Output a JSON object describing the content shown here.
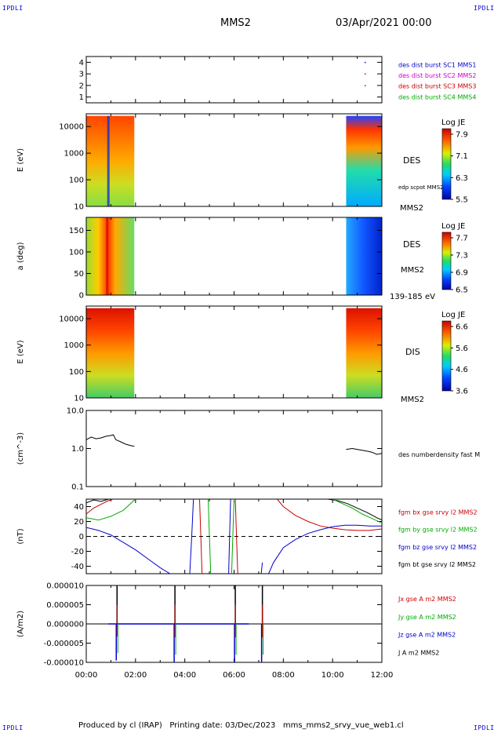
{
  "header": {
    "corner_label": "IPDLI",
    "spacecraft": "MMS2",
    "date": "03/Apr/2021 00:00"
  },
  "footer": {
    "text": "Produced by cl (IRAP)   Printing date: 03/Dec/2023   mms_mms2_srvy_vue_web1.cl"
  },
  "chart_data": [
    {
      "type": "scatter",
      "name": "burst-flags",
      "ylim": [
        0.5,
        4.5
      ],
      "ticks": [
        "1",
        "2",
        "3",
        "4"
      ],
      "tick_values": [
        1,
        2,
        3,
        4
      ],
      "x": "hours 00:00-12:00",
      "points": [
        {
          "x": 11.3,
          "y": 4,
          "color": "#0000cc"
        },
        {
          "x": 11.3,
          "y": 3,
          "color": "#cc0000"
        },
        {
          "x": 11.3,
          "y": 2,
          "color": "#cc0000"
        }
      ],
      "legend": [
        {
          "label": "des dist burst SC1 MMS1",
          "color": "#0000cc"
        },
        {
          "label": "des dist burst SC2 MMS2",
          "color": "#cc00cc"
        },
        {
          "label": "des dist burst SC3 MMS3",
          "color": "#cc0000"
        },
        {
          "label": "des dist burst SC4 MMS4",
          "color": "#00aa00"
        }
      ]
    },
    {
      "type": "heatmap",
      "name": "des-energy-spectrogram",
      "ylabel": "E (eV)",
      "yscale": "log",
      "ylim": [
        10,
        30000
      ],
      "ticks": [
        "10",
        "100",
        "1000",
        "10000"
      ],
      "tick_values": [
        10,
        100,
        1000,
        10000
      ],
      "data_intervals": [
        [
          0,
          1.95
        ],
        [
          10.55,
          12
        ]
      ],
      "labels": [
        "DES",
        "edp scpot MMS2",
        "MMS2"
      ],
      "colorbar": {
        "title": "Log JE",
        "ticks": [
          "7.9",
          "7.1",
          "6.3",
          "5.5"
        ]
      }
    },
    {
      "type": "heatmap",
      "name": "des-pitch-angle",
      "ylabel": "a (deg)",
      "ylim": [
        0,
        180
      ],
      "ticks": [
        "0",
        "50",
        "100",
        "150"
      ],
      "tick_values": [
        0,
        50,
        100,
        150
      ],
      "data_intervals": [
        [
          0,
          1.95
        ],
        [
          10.55,
          12
        ]
      ],
      "labels": [
        "DES",
        "MMS2",
        "139-185 eV"
      ],
      "colorbar": {
        "title": "Log JE",
        "ticks": [
          "7.7",
          "7.3",
          "6.9",
          "6.5"
        ]
      }
    },
    {
      "type": "heatmap",
      "name": "dis-energy-spectrogram",
      "ylabel": "E (eV)",
      "yscale": "log",
      "ylim": [
        10,
        30000
      ],
      "ticks": [
        "10",
        "100",
        "1000",
        "10000"
      ],
      "tick_values": [
        10,
        100,
        1000,
        10000
      ],
      "data_intervals": [
        [
          0,
          1.95
        ],
        [
          10.55,
          12
        ]
      ],
      "labels": [
        "DIS",
        "MMS2"
      ],
      "colorbar": {
        "title": "Log JE",
        "ticks": [
          "6.6",
          "5.6",
          "4.6",
          "3.6"
        ]
      }
    },
    {
      "type": "line",
      "name": "density",
      "ylabel": "(cm^-3)",
      "yscale": "log",
      "ylim": [
        0.1,
        10
      ],
      "ticks": [
        "0.1",
        "1.0",
        "10.0"
      ],
      "tick_values": [
        0.1,
        1,
        10
      ],
      "legend": [
        {
          "label": "des numberdensity fast M",
          "color": "#000000"
        }
      ],
      "series": [
        {
          "name": "des numberdensity fast M",
          "color": "#000000",
          "x": [
            0.0,
            0.2,
            0.4,
            0.6,
            0.8,
            1.0,
            1.1,
            1.2,
            1.4,
            1.6,
            1.8,
            1.95
          ],
          "y": [
            1.7,
            2.0,
            1.8,
            1.9,
            2.1,
            2.2,
            2.3,
            1.7,
            1.5,
            1.3,
            1.2,
            1.15
          ]
        },
        {
          "name": "des numberdensity fast M",
          "color": "#000000",
          "x": [
            10.55,
            10.8,
            11.0,
            11.2,
            11.4,
            11.6,
            11.8,
            12.0
          ],
          "y": [
            0.95,
            1.0,
            0.95,
            0.9,
            0.85,
            0.8,
            0.7,
            0.75
          ]
        }
      ]
    },
    {
      "type": "line",
      "name": "magnetic-field",
      "ylabel": "(nT)",
      "ylim": [
        -50,
        50
      ],
      "ticks": [
        "-40",
        "-20",
        "0",
        "20",
        "40"
      ],
      "tick_values": [
        -40,
        -20,
        0,
        20,
        40
      ],
      "zero_line": true,
      "legend": [
        {
          "label": "fgm bx gse srvy l2 MMS2",
          "color": "#cc0000"
        },
        {
          "label": "fgm by gse srvy l2 MMS2",
          "color": "#00aa00"
        },
        {
          "label": "fgm bz gse srvy l2 MMS2",
          "color": "#0000cc"
        },
        {
          "label": "fgm bt gse srvy l2 MMS2",
          "color": "#000000"
        }
      ],
      "series": [
        {
          "name": "fgm bt gse srvy l2 MMS2",
          "color": "#000000",
          "x": [
            0,
            0.3,
            0.6,
            0.9,
            1.0
          ],
          "y": [
            45,
            49,
            47,
            50,
            50
          ]
        },
        {
          "name": "fgm bx gse srvy l2 MMS2",
          "color": "#cc0000",
          "x": [
            0,
            0.3,
            0.6,
            0.9,
            1.1
          ],
          "y": [
            30,
            38,
            43,
            48,
            50
          ]
        },
        {
          "name": "fgm by gse srvy l2 MMS2",
          "color": "#00aa00",
          "x": [
            0,
            0.5,
            1.0,
            1.5,
            2.0
          ],
          "y": [
            25,
            22,
            27,
            35,
            50
          ]
        },
        {
          "name": "fgm bz gse srvy l2 MMS2",
          "color": "#0000cc",
          "x": [
            0,
            0.5,
            1.0,
            1.5,
            2.0,
            2.5,
            3.0,
            3.4
          ],
          "y": [
            12,
            8,
            2,
            -8,
            -18,
            -30,
            -42,
            -50
          ]
        },
        {
          "name": "fgm bz gse srvy l2 MMS2",
          "color": "#0000cc",
          "x": [
            4.2,
            4.28,
            4.35
          ],
          "y": [
            -50,
            0,
            50
          ]
        },
        {
          "name": "fgm bx gse srvy l2 MMS2",
          "color": "#cc0000",
          "x": [
            4.6,
            4.65,
            4.7
          ],
          "y": [
            50,
            0,
            -50
          ]
        },
        {
          "name": "fgm by gse srvy l2 MMS2",
          "color": "#00aa00",
          "x": [
            4.95,
            5.0,
            5.05
          ],
          "y": [
            50,
            0,
            -50
          ]
        },
        {
          "name": "fgm by gse srvy l2 MMS2",
          "color": "#00aa00",
          "x": [
            5.9,
            5.95,
            6.0
          ],
          "y": [
            -50,
            0,
            50
          ]
        },
        {
          "name": "fgm bz gse srvy l2 MMS2",
          "color": "#0000cc",
          "x": [
            5.78,
            5.82,
            5.86
          ],
          "y": [
            -50,
            0,
            50
          ]
        },
        {
          "name": "fgm bx gse srvy l2 MMS2",
          "color": "#cc0000",
          "x": [
            6.05,
            6.1,
            6.15
          ],
          "y": [
            50,
            0,
            -50
          ]
        },
        {
          "name": "fgm bz gse srvy l2 MMS2",
          "color": "#0000cc",
          "x": [
            7.1,
            7.15
          ],
          "y": [
            -50,
            -35
          ]
        },
        {
          "name": "fgm bx gse srvy l2 MMS2",
          "color": "#cc0000",
          "x": [
            7.75,
            8.0,
            8.5,
            9.0,
            9.5,
            10.0,
            10.5,
            11.0,
            11.5,
            12.0
          ],
          "y": [
            50,
            40,
            28,
            20,
            14,
            11,
            9,
            8,
            8,
            10
          ]
        },
        {
          "name": "fgm bz gse srvy l2 MMS2",
          "color": "#0000cc",
          "x": [
            7.4,
            7.6,
            8.0,
            8.5,
            9.0,
            9.5,
            10.0,
            10.5,
            11.0,
            11.5,
            12.0
          ],
          "y": [
            -50,
            -35,
            -15,
            -4,
            4,
            9,
            13,
            15,
            15,
            14,
            14
          ]
        },
        {
          "name": "fgm bt gse srvy l2 MMS2",
          "color": "#000000",
          "x": [
            9.8,
            10.2,
            10.6,
            11.0,
            11.4,
            11.8,
            12.0
          ],
          "y": [
            50,
            48,
            44,
            38,
            32,
            25,
            22
          ]
        },
        {
          "name": "fgm by gse srvy l2 MMS2",
          "color": "#00aa00",
          "x": [
            10.0,
            10.4,
            10.8,
            11.2,
            11.6,
            12.0
          ],
          "y": [
            50,
            44,
            38,
            30,
            24,
            18
          ]
        }
      ]
    },
    {
      "type": "line",
      "name": "current-density",
      "ylabel": "(A/m2)",
      "ylim": [
        -1e-05,
        1e-05
      ],
      "ticks": [
        "-0.000010",
        "-0.000005",
        "0.000000",
        "0.000005",
        "0.000010"
      ],
      "tick_values": [
        -1e-05,
        -5e-06,
        0,
        5e-06,
        1e-05
      ],
      "legend": [
        {
          "label": "Jx gse A m2 MMS2",
          "color": "#cc0000"
        },
        {
          "label": "Jy gse A m2 MMS2",
          "color": "#00aa00"
        },
        {
          "label": "Jz gse A m2 MMS2",
          "color": "#0000cc"
        },
        {
          "label": "J A m2 MMS2",
          "color": "#000000"
        }
      ],
      "spikes": [
        {
          "x": 1.25,
          "top": 1e-05,
          "bottom": -9.5e-06
        },
        {
          "x": 3.6,
          "top": 1e-05,
          "bottom": -1e-05
        },
        {
          "x": 6.05,
          "top": 1e-05,
          "bottom": -1e-05
        },
        {
          "x": 7.15,
          "top": 1e-05,
          "bottom": -1e-05
        }
      ]
    }
  ],
  "x_axis": {
    "ticks": [
      "00:00",
      "02:00",
      "04:00",
      "06:00",
      "08:00",
      "10:00",
      "12:00"
    ],
    "tick_hours": [
      0,
      2,
      4,
      6,
      8,
      10,
      12
    ],
    "xlim": [
      0,
      12
    ]
  }
}
